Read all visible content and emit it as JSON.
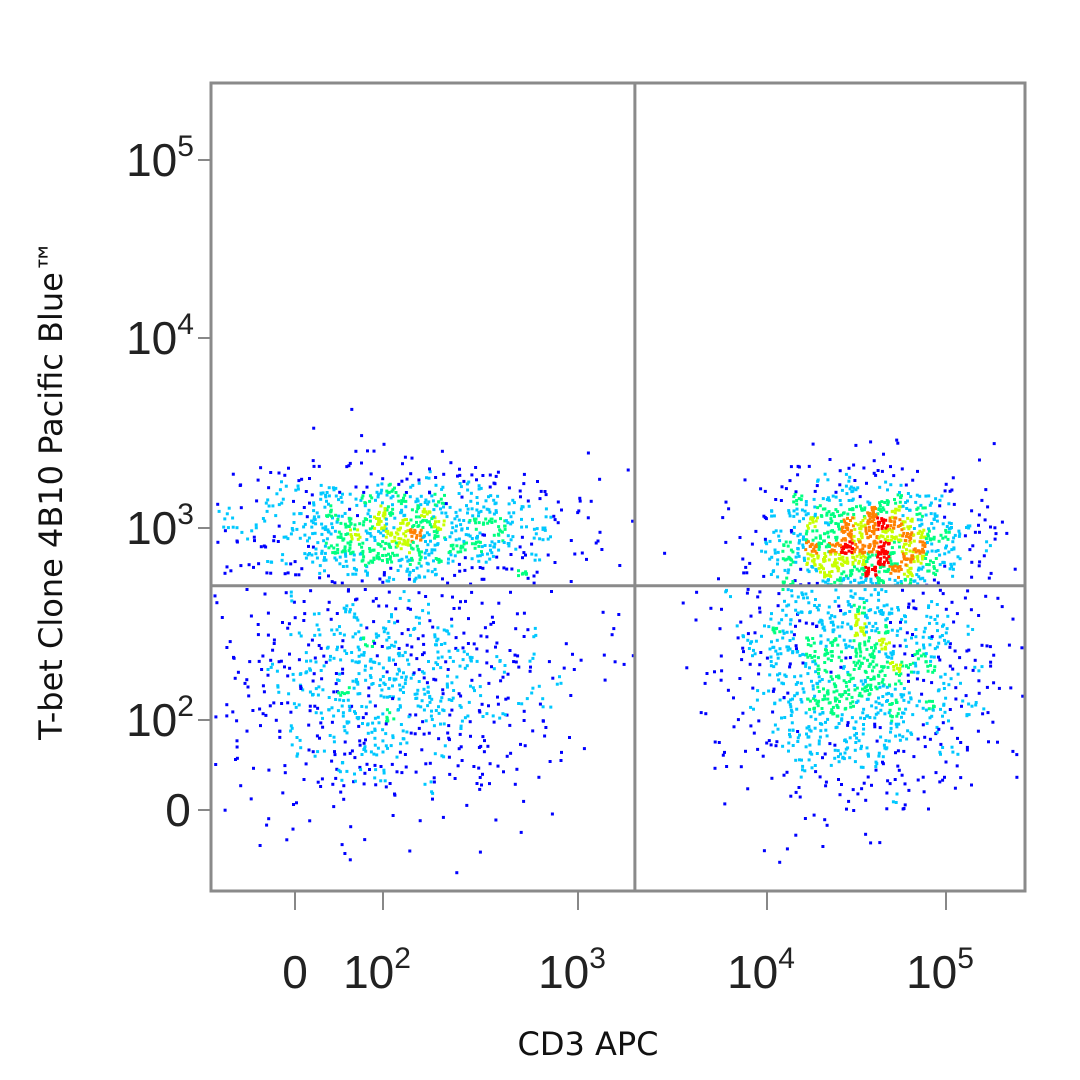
{
  "chart_data": {
    "type": "scatter",
    "subtype": "flow-cytometry pseudocolor density plot",
    "xlabel": "CD3 APC",
    "ylabel": "T-bet Clone 4B10 Pacific Blue™",
    "x_scale": "biexponential",
    "y_scale": "biexponential",
    "x_ticks": [
      {
        "value": 0,
        "base": "0",
        "exp": ""
      },
      {
        "value": 100,
        "base": "10",
        "exp": "2"
      },
      {
        "value": 1000,
        "base": "10",
        "exp": "3"
      },
      {
        "value": 10000,
        "base": "10",
        "exp": "4"
      },
      {
        "value": 100000,
        "base": "10",
        "exp": "5"
      }
    ],
    "y_ticks": [
      {
        "value": 0,
        "base": "0",
        "exp": ""
      },
      {
        "value": 100,
        "base": "10",
        "exp": "2"
      },
      {
        "value": 1000,
        "base": "10",
        "exp": "3"
      },
      {
        "value": 10000,
        "base": "10",
        "exp": "4"
      },
      {
        "value": 100000,
        "base": "10",
        "exp": "5"
      }
    ],
    "xlim": [
      -150,
      250000
    ],
    "ylim": [
      -150,
      250000
    ],
    "quadrant_gates": {
      "x": 2000,
      "y": 500
    },
    "populations": [
      {
        "quadrant": "CD3- T-bet+",
        "x_center": 120,
        "y_center": 1000,
        "x_range": [
          -100,
          800
        ],
        "y_range": [
          550,
          2500
        ],
        "relative_density": 0.7
      },
      {
        "quadrant": "CD3- T-bet-",
        "x_center": 100,
        "y_center": 160,
        "x_range": [
          -100,
          800
        ],
        "y_range": [
          -60,
          480
        ],
        "relative_density": 0.6
      },
      {
        "quadrant": "CD3+ T-bet+",
        "x_center": 35000,
        "y_center": 800,
        "x_range": [
          10000,
          150000
        ],
        "y_range": [
          520,
          3000
        ],
        "relative_density": 1.0
      },
      {
        "quadrant": "CD3+ T-bet-",
        "x_center": 32000,
        "y_center": 200,
        "x_range": [
          5000,
          150000
        ],
        "y_range": [
          -60,
          480
        ],
        "relative_density": 1.0
      }
    ],
    "colormap": [
      "#0000ff",
      "#00c8ff",
      "#00ff80",
      "#c8ff00",
      "#ff8000",
      "#ff0000"
    ],
    "grid": false,
    "legend": "none"
  }
}
